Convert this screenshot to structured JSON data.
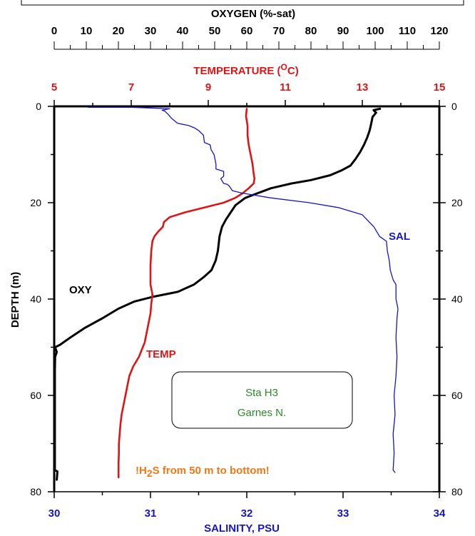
{
  "chart_data": {
    "type": "line",
    "y_axis": {
      "label": "DEPTH (m)",
      "range": [
        0,
        80
      ],
      "ticks": [
        "0",
        "20",
        "40",
        "60",
        "80"
      ],
      "inverted": true
    },
    "axes": {
      "oxygen": {
        "label": "OXYGEN (%-sat)",
        "range": [
          0,
          120
        ],
        "ticks": [
          "0",
          "10",
          "20",
          "30",
          "40",
          "50",
          "60",
          "70",
          "80",
          "90",
          "100",
          "110",
          "120"
        ],
        "color": "#000000"
      },
      "temperature": {
        "label_main": "TEMPERATURE (",
        "label_sup": "O",
        "label_end": "C)",
        "range": [
          5,
          15
        ],
        "ticks": [
          "5",
          "7",
          "9",
          "11",
          "13",
          "15"
        ],
        "color": "#e01414"
      },
      "salinity": {
        "label": "SALINITY, PSU",
        "range": [
          30,
          34
        ],
        "ticks": [
          "30",
          "31",
          "32",
          "33",
          "34"
        ],
        "color": "#1414c8"
      }
    },
    "series": [
      {
        "name": "OXY",
        "axis": "oxygen",
        "color": "#000000",
        "points": [
          [
            101.5,
            0.5
          ],
          [
            99.5,
            0.8
          ],
          [
            100.3,
            1.3
          ],
          [
            99.2,
            2.2
          ],
          [
            98.8,
            3.5
          ],
          [
            98.3,
            5
          ],
          [
            97.5,
            6.5
          ],
          [
            96.5,
            8
          ],
          [
            95.3,
            9.5
          ],
          [
            93.8,
            11
          ],
          [
            92.3,
            12.3
          ],
          [
            89.5,
            13.3
          ],
          [
            86,
            14.3
          ],
          [
            80,
            15.3
          ],
          [
            74,
            16
          ],
          [
            67.5,
            17
          ],
          [
            63.5,
            18
          ],
          [
            59.5,
            19
          ],
          [
            56.5,
            20.5
          ],
          [
            55,
            22
          ],
          [
            53.5,
            23.5
          ],
          [
            52.3,
            25
          ],
          [
            51.5,
            27
          ],
          [
            51,
            30
          ],
          [
            50.3,
            32
          ],
          [
            49,
            34
          ],
          [
            46.5,
            35.5
          ],
          [
            43.5,
            37
          ],
          [
            38.5,
            38.5
          ],
          [
            31,
            39.5
          ],
          [
            25,
            40.5
          ],
          [
            20,
            42
          ],
          [
            15,
            44
          ],
          [
            9.5,
            46
          ],
          [
            5,
            48
          ],
          [
            1.8,
            49.5
          ],
          [
            0.3,
            50
          ],
          [
            0.8,
            51
          ],
          [
            0.3,
            52
          ],
          [
            0.2,
            55
          ],
          [
            0.2,
            60
          ],
          [
            0.2,
            65
          ],
          [
            0.2,
            70
          ],
          [
            0.2,
            74
          ],
          [
            0.2,
            75.5
          ],
          [
            1,
            75.8
          ],
          [
            0.8,
            77.5
          ]
        ]
      },
      {
        "name": "TEMP",
        "axis": "temperature",
        "color": "#e01414",
        "points": [
          [
            10,
            0.5
          ],
          [
            9.98,
            2
          ],
          [
            10.02,
            4
          ],
          [
            10.02,
            6
          ],
          [
            10.05,
            8
          ],
          [
            10.1,
            10
          ],
          [
            10.15,
            12
          ],
          [
            10.18,
            14
          ],
          [
            10.2,
            15
          ],
          [
            10.18,
            16
          ],
          [
            10.05,
            17
          ],
          [
            9.9,
            18
          ],
          [
            9.7,
            19
          ],
          [
            9.4,
            20
          ],
          [
            8.9,
            21
          ],
          [
            8.4,
            22
          ],
          [
            8.0,
            23
          ],
          [
            7.85,
            24
          ],
          [
            7.82,
            25
          ],
          [
            7.7,
            26
          ],
          [
            7.6,
            27
          ],
          [
            7.55,
            28
          ],
          [
            7.52,
            30
          ],
          [
            7.5,
            33
          ],
          [
            7.5,
            37
          ],
          [
            7.55,
            39
          ],
          [
            7.52,
            41
          ],
          [
            7.5,
            43
          ],
          [
            7.45,
            45
          ],
          [
            7.4,
            47
          ],
          [
            7.35,
            49
          ],
          [
            7.3,
            50
          ],
          [
            7.2,
            52
          ],
          [
            7.05,
            54
          ],
          [
            6.95,
            56
          ],
          [
            6.9,
            58
          ],
          [
            6.85,
            60
          ],
          [
            6.8,
            62
          ],
          [
            6.75,
            64
          ],
          [
            6.72,
            66
          ],
          [
            6.7,
            68
          ],
          [
            6.68,
            70
          ],
          [
            6.68,
            72
          ],
          [
            6.67,
            74
          ],
          [
            6.67,
            76
          ],
          [
            6.67,
            77
          ]
        ]
      },
      {
        "name": "SAL",
        "axis": "salinity",
        "color": "#1414c8",
        "points": [
          [
            30.35,
            0.2
          ],
          [
            30.8,
            0.2
          ],
          [
            31.2,
            0.5
          ],
          [
            31.12,
            0.8
          ],
          [
            31.15,
            1
          ],
          [
            31.18,
            1.6
          ],
          [
            31.22,
            2.5
          ],
          [
            31.28,
            3.5
          ],
          [
            31.4,
            4
          ],
          [
            31.46,
            4.5
          ],
          [
            31.5,
            5
          ],
          [
            31.55,
            6
          ],
          [
            31.56,
            7.5
          ],
          [
            31.62,
            8
          ],
          [
            31.63,
            9
          ],
          [
            31.66,
            10
          ],
          [
            31.67,
            11
          ],
          [
            31.68,
            12
          ],
          [
            31.68,
            13
          ],
          [
            31.76,
            13.5
          ],
          [
            31.76,
            14.5
          ],
          [
            31.73,
            15
          ],
          [
            31.76,
            16
          ],
          [
            31.8,
            16.2
          ],
          [
            31.82,
            16.6
          ],
          [
            31.85,
            17.5
          ],
          [
            31.95,
            18
          ],
          [
            32.25,
            19
          ],
          [
            32.65,
            20
          ],
          [
            32.95,
            21
          ],
          [
            33.2,
            22.5
          ],
          [
            33.32,
            25
          ],
          [
            33.38,
            27
          ],
          [
            33.45,
            28
          ],
          [
            33.46,
            30
          ],
          [
            33.48,
            32
          ],
          [
            33.49,
            34
          ],
          [
            33.52,
            36
          ],
          [
            33.55,
            37
          ],
          [
            33.55,
            40
          ],
          [
            33.57,
            42
          ],
          [
            33.56,
            44
          ],
          [
            33.55,
            48
          ],
          [
            33.56,
            52
          ],
          [
            33.55,
            56
          ],
          [
            33.53,
            60
          ],
          [
            33.54,
            64
          ],
          [
            33.52,
            68
          ],
          [
            33.53,
            72
          ],
          [
            33.52,
            75.5
          ],
          [
            33.54,
            76
          ]
        ]
      }
    ],
    "annotations": {
      "oxy_label": "OXY",
      "temp_label": "TEMP",
      "sal_label": "SAL",
      "station_line1": "Sta H3",
      "station_line2": "Garnes N.",
      "h2s_main": "!H",
      "h2s_sub": "2",
      "h2s_rest": "S from 50 m to bottom!"
    }
  },
  "colors": {
    "station_text": "#2a8a2a",
    "h2s_text": "#f07818"
  }
}
